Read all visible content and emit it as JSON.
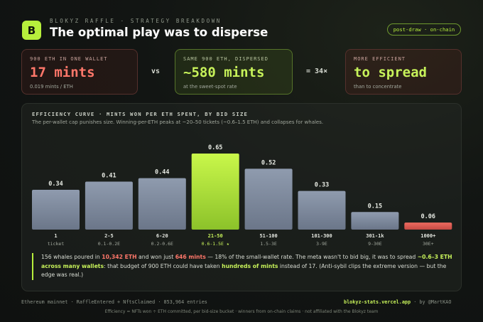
{
  "header": {
    "logo_letter": "B",
    "kicker": "BLOKYZ RAFFLE · STRATEGY BREAKDOWN",
    "title": "The optimal play was to disperse",
    "badge": "post-draw · on-chain"
  },
  "cards": {
    "concentrated": {
      "label": "900 ETH IN ONE WALLET",
      "value": "17 mints",
      "sub": "0.019 mints / ETH"
    },
    "vs": "vs",
    "dispersed": {
      "label": "SAME 900 ETH, DISPERSED",
      "value": "~580 mints",
      "sub": "at the sweet-spot rate"
    },
    "multiplier": "= 34×",
    "conclusion": {
      "label": "MORE EFFICIENT",
      "value": "to spread",
      "sub": "than to concentrate"
    }
  },
  "colors": {
    "accent": "#b7ef3c",
    "bar": "#8a96aa",
    "highlight": "#b7ef3c",
    "worst": "#e2625a"
  },
  "chart_data": {
    "type": "bar",
    "title": "EFFICIENCY CURVE · MINTS WON PER ETH SPENT, BY BID SIZE",
    "subtitle": "The per-wallet cap punishes size. Winning-per-ETH peaks at ~20–50 tickets (~0.6–1.5 ETH) and collapses for whales.",
    "categories": [
      "1",
      "2-5",
      "6-20",
      "21-50",
      "51-100",
      "101-300",
      "301-1k",
      "1000+"
    ],
    "category_sublabels": [
      "ticket",
      "0.1-0.2E",
      "0.2-0.6E",
      "0.6-1.5E ★",
      "1.5-3E",
      "3-9E",
      "9-30E",
      "30E+"
    ],
    "values": [
      0.34,
      0.41,
      0.44,
      0.65,
      0.52,
      0.33,
      0.15,
      0.06
    ],
    "value_labels": [
      "0.34",
      "0.41",
      "0.44",
      "0.65",
      "0.52",
      "0.33",
      "0.15",
      "0.06"
    ],
    "highlight_index": 3,
    "worst_index": 7,
    "ylim": [
      0,
      0.65
    ],
    "grid": false
  },
  "insight": {
    "p1": "156 whales poured in ",
    "eth": "10,342 ETH",
    "p2": " and won just ",
    "mints": "646 mints",
    "p3": " — 18% of the small-wallet rate. The meta wasn't to bid big, it was to spread ",
    "spread": "~0.6–3 ETH across many wallets",
    "p4": ": that budget of 900 ETH could have taken ",
    "hundreds": "hundreds of mints",
    "p5": " instead of 17. (Anti-sybil clips the extreme version — but the edge was real.)"
  },
  "footer": {
    "left": "Ethereum mainnet · RaffleEntered + NftsClaimed · 853,964 entries",
    "site": "blokyz-stats.vercel.app",
    "by": " · by @MartKAO",
    "note": "Efficiency = NFTs won ÷ ETH committed, per bid-size bucket · winners from on-chain claims · not affiliated with the Blokyz team"
  }
}
